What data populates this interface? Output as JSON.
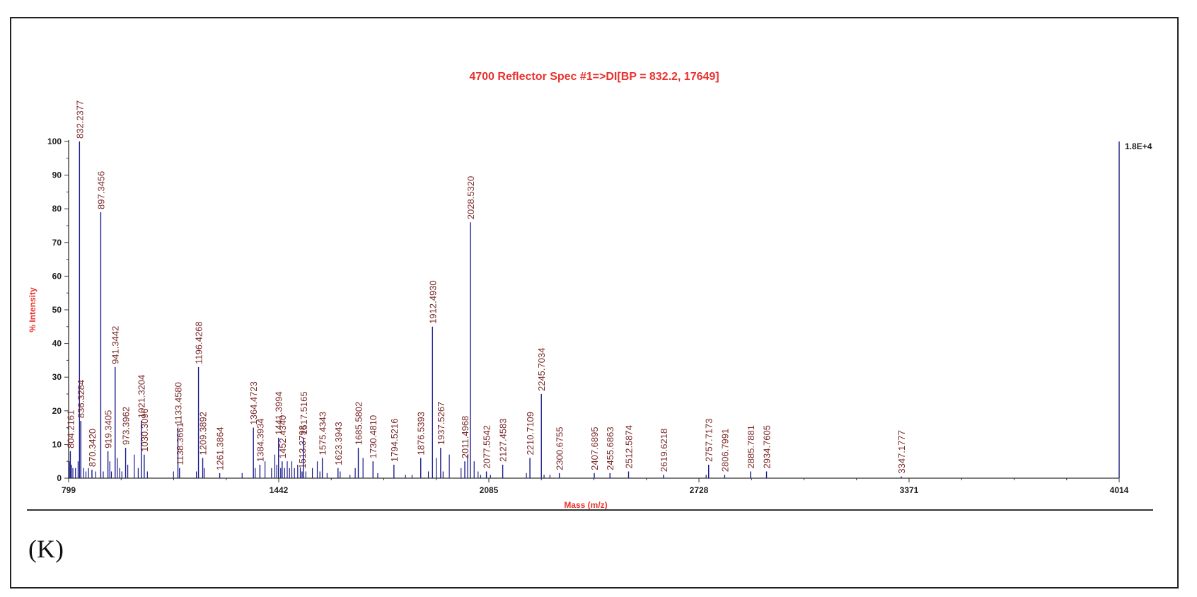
{
  "panel_label": "(K)",
  "chart_data": {
    "type": "bar",
    "title": "4700 Reflector Spec #1=>DI[BP = 832.2, 17649]",
    "xlabel": "Mass (m/z)",
    "ylabel": "% Intensity",
    "xlim": [
      799,
      4014
    ],
    "ylim": [
      0,
      100
    ],
    "x_ticks": [
      799,
      1442,
      2085,
      2728,
      3371,
      4014
    ],
    "y_ticks": [
      0,
      10,
      20,
      30,
      40,
      50,
      60,
      70,
      80,
      90,
      100
    ],
    "right_axis_label": "1.8E+4",
    "grid": false,
    "colors": {
      "title": "#e8322e",
      "peak": "#1a1a8c",
      "peak_label": "#7a2a2a",
      "axis": "#333333"
    },
    "labeled_peaks": [
      {
        "mz": 804.2161,
        "intensity": 8,
        "label": "804.2161"
      },
      {
        "mz": 832.2377,
        "intensity": 100,
        "label": "832.2377"
      },
      {
        "mz": 836.3284,
        "intensity": 17,
        "label": "836.3284"
      },
      {
        "mz": 870.342,
        "intensity": 2.5,
        "label": "870.3420"
      },
      {
        "mz": 897.3456,
        "intensity": 79,
        "label": "897.3456"
      },
      {
        "mz": 919.3405,
        "intensity": 8,
        "label": "919.3405"
      },
      {
        "mz": 941.3442,
        "intensity": 33,
        "label": "941.3442"
      },
      {
        "mz": 973.3962,
        "intensity": 9,
        "label": "973.3962"
      },
      {
        "mz": 1021.3204,
        "intensity": 17,
        "label": "1021.3204"
      },
      {
        "mz": 1030.3096,
        "intensity": 7,
        "label": "1030.3096"
      },
      {
        "mz": 1133.458,
        "intensity": 15,
        "label": "1133.4580"
      },
      {
        "mz": 1138.3661,
        "intensity": 3,
        "label": "1138.3661"
      },
      {
        "mz": 1196.4268,
        "intensity": 33,
        "label": "1196.4268"
      },
      {
        "mz": 1209.3892,
        "intensity": 6,
        "label": "1209.3892"
      },
      {
        "mz": 1261.3864,
        "intensity": 1.5,
        "label": "1261.3864"
      },
      {
        "mz": 1364.4723,
        "intensity": 15,
        "label": "1364.4723"
      },
      {
        "mz": 1384.3934,
        "intensity": 4,
        "label": "1384.3934"
      },
      {
        "mz": 1441.3994,
        "intensity": 12,
        "label": "1441.3994"
      },
      {
        "mz": 1452.434,
        "intensity": 5,
        "label": "1452.4340"
      },
      {
        "mz": 1513.3798,
        "intensity": 2,
        "label": "1513.3798"
      },
      {
        "mz": 1517.5165,
        "intensity": 12,
        "label": "1517.5165"
      },
      {
        "mz": 1575.4343,
        "intensity": 6,
        "label": "1575.4343"
      },
      {
        "mz": 1623.3943,
        "intensity": 3,
        "label": "1623.3943"
      },
      {
        "mz": 1685.5802,
        "intensity": 9,
        "label": "1685.5802"
      },
      {
        "mz": 1730.481,
        "intensity": 5,
        "label": "1730.4810"
      },
      {
        "mz": 1794.5216,
        "intensity": 4,
        "label": "1794.5216"
      },
      {
        "mz": 1876.5393,
        "intensity": 6,
        "label": "1876.5393"
      },
      {
        "mz": 1912.493,
        "intensity": 45,
        "label": "1912.4930"
      },
      {
        "mz": 1937.5267,
        "intensity": 9,
        "label": "1937.5267"
      },
      {
        "mz": 2011.4968,
        "intensity": 5,
        "label": "2011.4968"
      },
      {
        "mz": 2028.532,
        "intensity": 76,
        "label": "2028.5320"
      },
      {
        "mz": 2077.5542,
        "intensity": 2,
        "label": "2077.5542"
      },
      {
        "mz": 2127.4583,
        "intensity": 4,
        "label": "2127.4583"
      },
      {
        "mz": 2210.7109,
        "intensity": 6,
        "label": "2210.7109"
      },
      {
        "mz": 2245.7034,
        "intensity": 25,
        "label": "2245.7034"
      },
      {
        "mz": 2300.6755,
        "intensity": 1.5,
        "label": "2300.6755"
      },
      {
        "mz": 2407.6895,
        "intensity": 1.5,
        "label": "2407.6895"
      },
      {
        "mz": 2455.6863,
        "intensity": 1.5,
        "label": "2455.6863"
      },
      {
        "mz": 2512.5874,
        "intensity": 2,
        "label": "2512.5874"
      },
      {
        "mz": 2619.6218,
        "intensity": 1,
        "label": "2619.6218"
      },
      {
        "mz": 2757.7173,
        "intensity": 4,
        "label": "2757.7173"
      },
      {
        "mz": 2806.7991,
        "intensity": 1,
        "label": "2806.7991"
      },
      {
        "mz": 2885.7881,
        "intensity": 2,
        "label": "2885.7881"
      },
      {
        "mz": 2934.7605,
        "intensity": 2,
        "label": "2934.7605"
      },
      {
        "mz": 3347.1777,
        "intensity": 0.5,
        "label": "3347.1777"
      }
    ],
    "minor_peaks": [
      {
        "mz": 801,
        "intensity": 5
      },
      {
        "mz": 808,
        "intensity": 4
      },
      {
        "mz": 812,
        "intensity": 3
      },
      {
        "mz": 820,
        "intensity": 3
      },
      {
        "mz": 828,
        "intensity": 5
      },
      {
        "mz": 845,
        "intensity": 3
      },
      {
        "mz": 852,
        "intensity": 2
      },
      {
        "mz": 860,
        "intensity": 3
      },
      {
        "mz": 882,
        "intensity": 2
      },
      {
        "mz": 905,
        "intensity": 2
      },
      {
        "mz": 925,
        "intensity": 5
      },
      {
        "mz": 930,
        "intensity": 2
      },
      {
        "mz": 948,
        "intensity": 6
      },
      {
        "mz": 955,
        "intensity": 3
      },
      {
        "mz": 962,
        "intensity": 2
      },
      {
        "mz": 980,
        "intensity": 4
      },
      {
        "mz": 1000,
        "intensity": 7
      },
      {
        "mz": 1012,
        "intensity": 3
      },
      {
        "mz": 1040,
        "intensity": 2
      },
      {
        "mz": 1120,
        "intensity": 2
      },
      {
        "mz": 1190,
        "intensity": 2
      },
      {
        "mz": 1214,
        "intensity": 3
      },
      {
        "mz": 1330,
        "intensity": 1.5
      },
      {
        "mz": 1370,
        "intensity": 3
      },
      {
        "mz": 1400,
        "intensity": 5
      },
      {
        "mz": 1420,
        "intensity": 3
      },
      {
        "mz": 1430,
        "intensity": 7
      },
      {
        "mz": 1436,
        "intensity": 4
      },
      {
        "mz": 1448,
        "intensity": 3
      },
      {
        "mz": 1460,
        "intensity": 3
      },
      {
        "mz": 1468,
        "intensity": 5
      },
      {
        "mz": 1475,
        "intensity": 3
      },
      {
        "mz": 1482,
        "intensity": 5
      },
      {
        "mz": 1490,
        "intensity": 3
      },
      {
        "mz": 1500,
        "intensity": 4
      },
      {
        "mz": 1508,
        "intensity": 3
      },
      {
        "mz": 1525,
        "intensity": 2
      },
      {
        "mz": 1545,
        "intensity": 3
      },
      {
        "mz": 1560,
        "intensity": 5
      },
      {
        "mz": 1568,
        "intensity": 2
      },
      {
        "mz": 1590,
        "intensity": 1.5
      },
      {
        "mz": 1630,
        "intensity": 2
      },
      {
        "mz": 1660,
        "intensity": 1
      },
      {
        "mz": 1676,
        "intensity": 3
      },
      {
        "mz": 1700,
        "intensity": 6
      },
      {
        "mz": 1745,
        "intensity": 1.5
      },
      {
        "mz": 1830,
        "intensity": 1
      },
      {
        "mz": 1850,
        "intensity": 1
      },
      {
        "mz": 1900,
        "intensity": 2
      },
      {
        "mz": 1924,
        "intensity": 6
      },
      {
        "mz": 1945,
        "intensity": 2
      },
      {
        "mz": 1964,
        "intensity": 7
      },
      {
        "mz": 2000,
        "intensity": 3
      },
      {
        "mz": 2020,
        "intensity": 7
      },
      {
        "mz": 2040,
        "intensity": 5
      },
      {
        "mz": 2052,
        "intensity": 2
      },
      {
        "mz": 2060,
        "intensity": 1
      },
      {
        "mz": 2090,
        "intensity": 1
      },
      {
        "mz": 2200,
        "intensity": 1.5
      },
      {
        "mz": 2254,
        "intensity": 1
      },
      {
        "mz": 2272,
        "intensity": 1
      },
      {
        "mz": 2750,
        "intensity": 1
      }
    ]
  }
}
